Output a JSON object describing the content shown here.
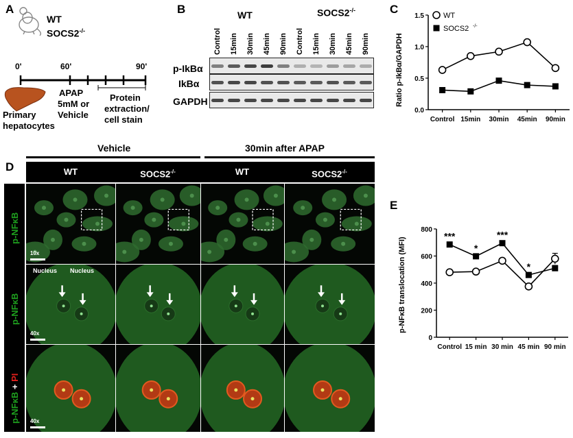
{
  "panels": {
    "A": "A",
    "B": "B",
    "C": "C",
    "D": "D",
    "E": "E"
  },
  "panelA": {
    "wt": "WT",
    "socs": "SOCS2",
    "socs_sup": "-/-",
    "times": [
      "0'",
      "60'",
      "90'"
    ],
    "cells_label_1": "Primary",
    "cells_label_2": "hepatocytes",
    "apap_lines": [
      "APAP",
      "5mM or",
      "Vehicle"
    ],
    "protein_lines": [
      "Protein",
      "extraction/",
      "cell stain"
    ]
  },
  "panelB": {
    "group_wt": "WT",
    "group_socs": "SOCS2",
    "group_socs_sup": "-/-",
    "lanes": [
      "Control",
      "15min",
      "30min",
      "45min",
      "90min",
      "Control",
      "15min",
      "30min",
      "45min",
      "90min"
    ],
    "rows": [
      "p-IkBα",
      "IkBα",
      "GAPDH"
    ]
  },
  "chartC": {
    "ylabel": "Ratio p-IkBα/GAPDH",
    "yticks": [
      "0.0",
      "0.5",
      "1.0",
      "1.5"
    ],
    "legend_wt": "WT",
    "legend_socs": "SOCS2",
    "legend_socs_sup": "-/-"
  },
  "panelD": {
    "group_vehicle": "Vehicle",
    "group_apap": "30min after APAP",
    "col_headers": [
      "WT",
      "SOCS2",
      "WT",
      "SOCS2"
    ],
    "col_sup": [
      "",
      "-/-",
      "",
      "-/-"
    ],
    "row_labels": [
      "p-NFκB",
      "p-NFκB",
      "p-NFκB + PI"
    ],
    "row3_parts": [
      "p-NFκB",
      " + ",
      "PI"
    ],
    "scale": [
      "10x",
      "40x",
      "40x"
    ],
    "nucleus": "Nucleus"
  },
  "chartE": {
    "ylabel": "p-NFκB translocation (MFI)",
    "yticks": [
      "0",
      "200",
      "400",
      "600",
      "800"
    ],
    "sig": [
      "***",
      "*",
      "***",
      "*",
      ""
    ]
  },
  "chart_data": [
    {
      "type": "line",
      "categories": [
        "Control",
        "15min",
        "30min",
        "45min",
        "90min"
      ],
      "series": [
        {
          "name": "WT",
          "values": [
            0.63,
            0.85,
            0.92,
            1.07,
            0.66
          ]
        },
        {
          "name": "SOCS2-/-",
          "values": [
            0.31,
            0.29,
            0.46,
            0.39,
            0.37
          ]
        }
      ],
      "ylabel": "Ratio p-IkBα/GAPDH",
      "ylim": [
        0,
        1.5
      ],
      "legend": "top-left"
    },
    {
      "type": "line",
      "categories": [
        "Control",
        "15 min",
        "30 min",
        "45 min",
        "90 min"
      ],
      "series": [
        {
          "name": "WT",
          "values": [
            480,
            485,
            565,
            375,
            580
          ],
          "err": [
            15,
            8,
            10,
            10,
            40
          ]
        },
        {
          "name": "SOCS2-/-",
          "values": [
            685,
            598,
            695,
            460,
            510
          ],
          "err": [
            10,
            10,
            12,
            10,
            20
          ]
        }
      ],
      "ylabel": "p-NFκB translocation (MFI)",
      "ylim": [
        0,
        800
      ],
      "annotations": [
        "***",
        "*",
        "***",
        "*",
        ""
      ]
    }
  ]
}
